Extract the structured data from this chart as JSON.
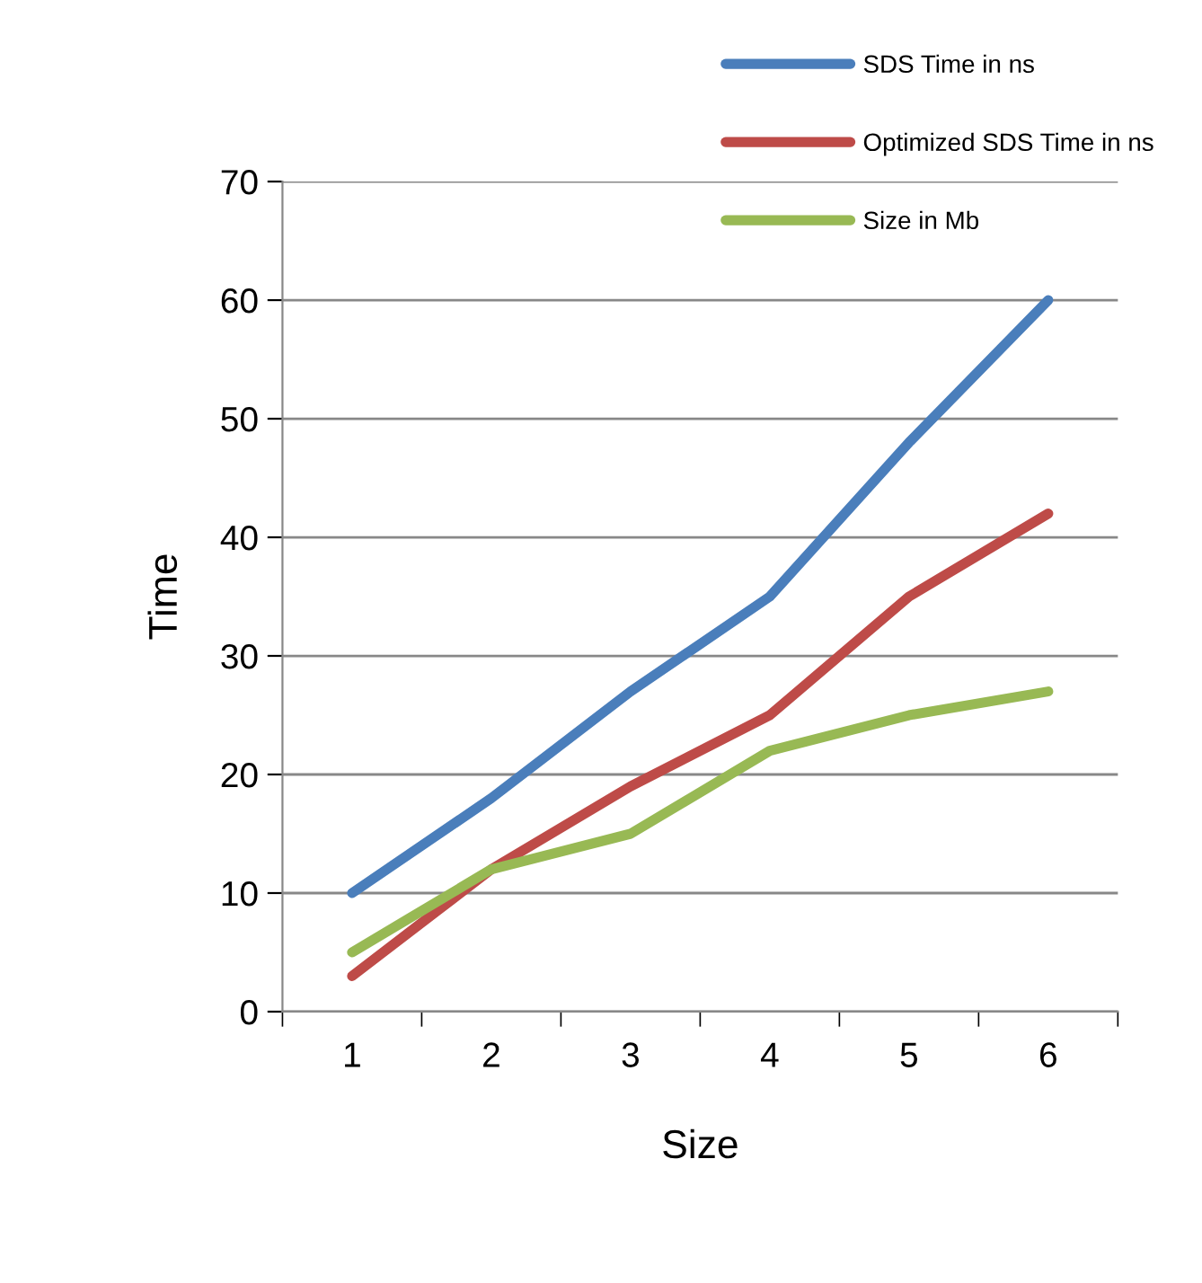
{
  "chart_data": {
    "type": "line",
    "xlabel": "Size",
    "ylabel": "Time",
    "categories": [
      "1",
      "2",
      "3",
      "4",
      "5",
      "6"
    ],
    "series": [
      {
        "name": "SDS Time in ns",
        "color": "#4a7ebb",
        "values": [
          10,
          18,
          27,
          35,
          48,
          60
        ]
      },
      {
        "name": "Optimized SDS Time in ns",
        "color": "#be4b48",
        "values": [
          3,
          12,
          19,
          25,
          35,
          42
        ]
      },
      {
        "name": "Size in Mb",
        "color": "#98b954",
        "values": [
          5,
          12,
          15,
          22,
          25,
          27
        ]
      }
    ],
    "ylim": [
      0,
      70
    ],
    "yticks": [
      0,
      10,
      20,
      30,
      40,
      50,
      60,
      70
    ],
    "grid": "y",
    "legend": "top right",
    "marker": "none",
    "line_style": "solid"
  }
}
